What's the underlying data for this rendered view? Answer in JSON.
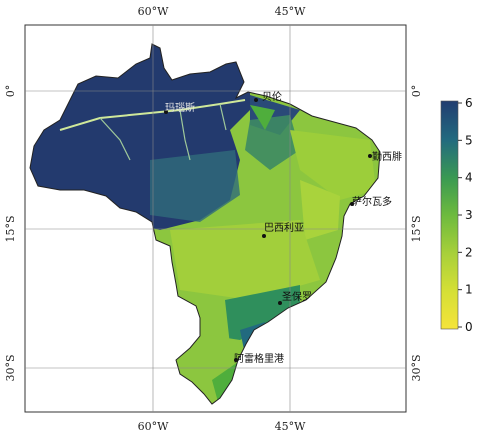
{
  "map": {
    "longitude_labels": {
      "w60": "60°W",
      "w45": "45°W"
    },
    "latitude_labels": {
      "n0": "0°",
      "s15": "15°S",
      "s30": "30°S"
    }
  },
  "cities": [
    {
      "id": "belem",
      "label": "贝伦",
      "lon": -48.5,
      "lat": -1.4
    },
    {
      "id": "manaus",
      "label": "玛瑙斯",
      "lon": -60.0,
      "lat": -3.1
    },
    {
      "id": "fortaleza",
      "label": "勤西腓",
      "lon": -38.5,
      "lat": -3.7
    },
    {
      "id": "salvador",
      "label": "萨尔瓦多",
      "lon": -38.5,
      "lat": -12.9
    },
    {
      "id": "brasilia",
      "label": "巴西利亚",
      "lon": -47.9,
      "lat": -15.8
    },
    {
      "id": "rio",
      "label": "圣保罗",
      "lon": -46.6,
      "lat": -23.5
    },
    {
      "id": "rio-grande",
      "label": "阿雷格里港",
      "lon": -51.2,
      "lat": -30.0
    }
  ],
  "colorbar": {
    "ticks": [
      "6",
      "5",
      "4",
      "3",
      "2",
      "1",
      "0"
    ],
    "colors": [
      "#f2e23a",
      "#c7d933",
      "#8cc63f",
      "#4fae3c",
      "#2f8f5c",
      "#1f5f8b",
      "#233a6e"
    ]
  }
}
